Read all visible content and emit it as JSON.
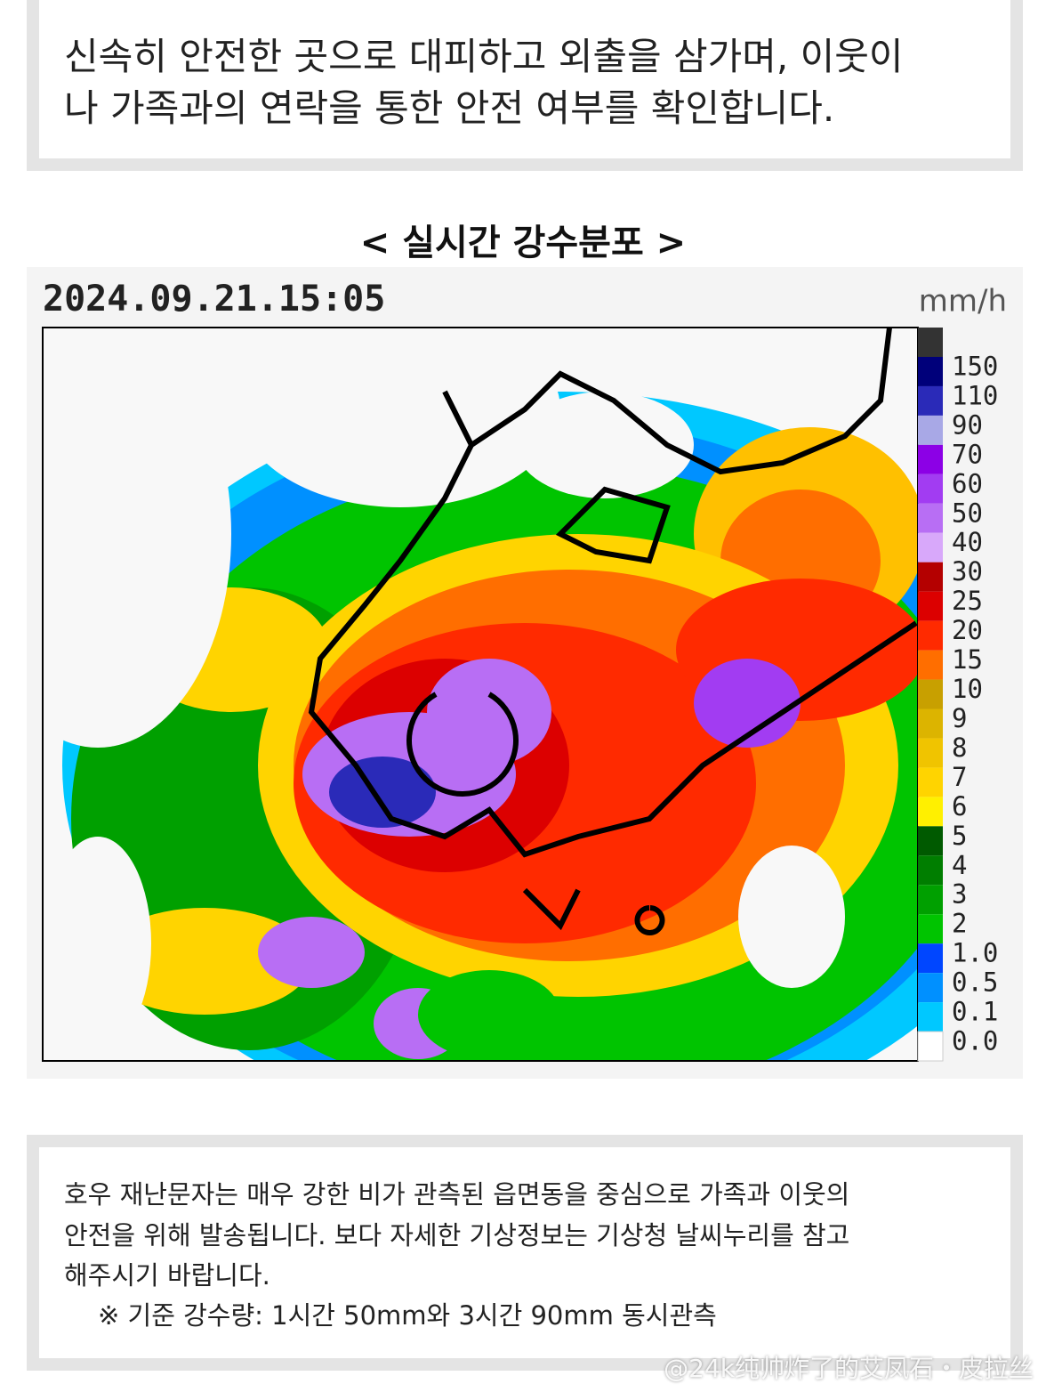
{
  "top_box": {
    "lines": [
      "신속히 안전한 곳으로 대피하고 외출을 삼가며, 이웃이",
      "나 가족과의 연락을 통한 안전 여부를 확인합니다."
    ]
  },
  "map_title": "< 실시간 강수분포 >",
  "radar": {
    "timestamp": "2024.09.21.15:05",
    "unit": "mm/h",
    "legend": [
      {
        "label": "150",
        "color": "#00007a"
      },
      {
        "label": "110",
        "color": "#2a2ab8"
      },
      {
        "label": "90",
        "color": "#a8a8e6"
      },
      {
        "label": "70",
        "color": "#8c00e6"
      },
      {
        "label": "60",
        "color": "#a23cf2"
      },
      {
        "label": "50",
        "color": "#b86ef4"
      },
      {
        "label": "40",
        "color": "#d8a8fa"
      },
      {
        "label": "30",
        "color": "#b40000"
      },
      {
        "label": "25",
        "color": "#dc0000"
      },
      {
        "label": "20",
        "color": "#ff2a00"
      },
      {
        "label": "15",
        "color": "#ff6e00"
      },
      {
        "label": "10",
        "color": "#c8a000"
      },
      {
        "label": "9",
        "color": "#dcb400"
      },
      {
        "label": "8",
        "color": "#f0c400"
      },
      {
        "label": "7",
        "color": "#ffd400"
      },
      {
        "label": "6",
        "color": "#fff000"
      },
      {
        "label": "5",
        "color": "#005a00"
      },
      {
        "label": "4",
        "color": "#007e00"
      },
      {
        "label": "3",
        "color": "#00a000"
      },
      {
        "label": "2",
        "color": "#00c400"
      },
      {
        "label": "1.0",
        "color": "#0046ff"
      },
      {
        "label": "0.5",
        "color": "#0090ff"
      },
      {
        "label": "0.1",
        "color": "#00c8ff"
      },
      {
        "label": "0.0",
        "color": "#ffffff"
      }
    ]
  },
  "bottom_box": {
    "lines": [
      "호우 재난문자는 매우 강한 비가 관측된 읍면동을 중심으로 가족과 이웃의",
      "안전을 위해 발송됩니다. 보다 자세한 기상정보는 기상청 날씨누리를 참고",
      "해주시기 바랍니다."
    ],
    "note": "※ 기준 강수량: 1시간 50mm와 3시간 90mm 동시관측"
  },
  "watermark": "@24k纯帅炸了的艾凤石・皮拉丝"
}
